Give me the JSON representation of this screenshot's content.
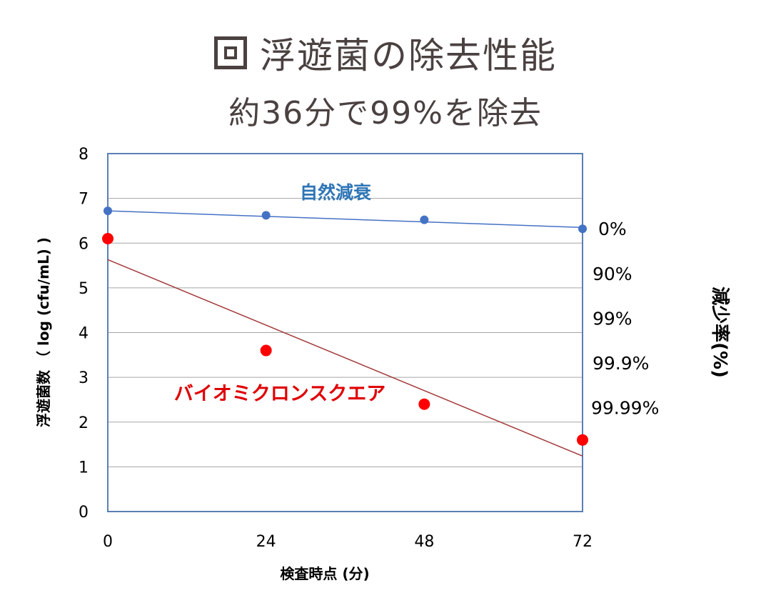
{
  "title": "浮遊菌の除去性能",
  "subtitle": "約36分で99%を除去",
  "chart_data": {
    "type": "scatter",
    "xlabel": "検査時点 (分)",
    "ylabel": "浮遊菌数 （ log (cfu/mL) )",
    "ylabel_right": "減少率(%)",
    "xlim": [
      0,
      72
    ],
    "ylim": [
      0,
      8
    ],
    "x_ticks": [
      "0",
      "24",
      "48",
      "72"
    ],
    "y_ticks": [
      "0",
      "1",
      "2",
      "3",
      "4",
      "5",
      "6",
      "7",
      "8"
    ],
    "grid": true,
    "series": [
      {
        "name": "自然減衰",
        "color": "#4472c4",
        "label_color": "#2e75b6",
        "x": [
          0,
          24,
          48,
          72
        ],
        "y": [
          6.72,
          6.62,
          6.52,
          6.32
        ],
        "trendline": {
          "x": [
            0,
            72
          ],
          "y": [
            6.72,
            6.35
          ]
        }
      },
      {
        "name": "バイオミクロンスクエア",
        "color": "#ff0000",
        "label_color": "#e00000",
        "x": [
          0,
          24,
          48,
          72
        ],
        "y": [
          6.1,
          3.6,
          2.4,
          1.6
        ],
        "trendline": {
          "x": [
            0,
            72
          ],
          "y": [
            5.63,
            1.24
          ]
        }
      }
    ],
    "reduction_labels": [
      {
        "text": "0%",
        "y": 6.32
      },
      {
        "text": "90%",
        "y": 5.32
      },
      {
        "text": "99%",
        "y": 4.32
      },
      {
        "text": "99.9%",
        "y": 3.32
      },
      {
        "text": "99.99%",
        "y": 2.32
      }
    ]
  }
}
